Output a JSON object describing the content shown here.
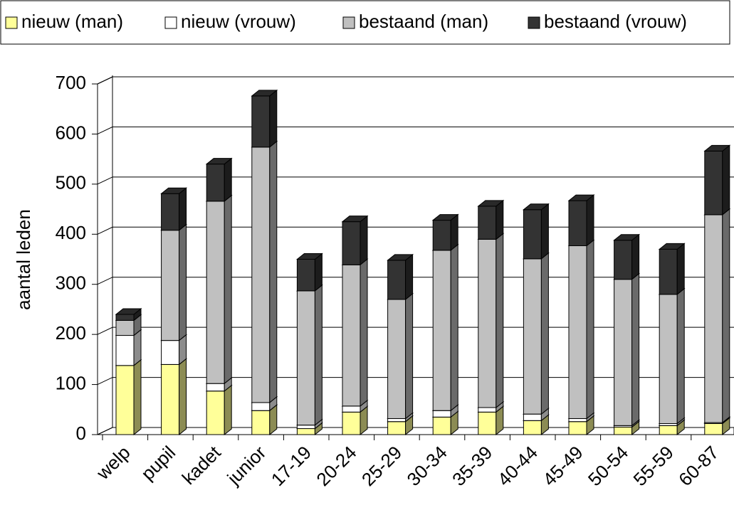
{
  "chart_data": {
    "type": "bar3d-stacked",
    "y_label": "aantal leden",
    "categories": [
      "welp",
      "pupil",
      "kadet",
      "junior",
      "17-19",
      "20-24",
      "25-29",
      "30-34",
      "35-39",
      "40-44",
      "45-49",
      "50-54",
      "55-59",
      "60-87"
    ],
    "series": [
      {
        "name": "nieuw (man)",
        "color": "#ffff99",
        "values": [
          138,
          140,
          87,
          48,
          12,
          45,
          26,
          35,
          45,
          28,
          26,
          15,
          18,
          22
        ]
      },
      {
        "name": "nieuw (vrouw)",
        "color": "#ffffff",
        "values": [
          60,
          48,
          15,
          16,
          7,
          12,
          6,
          13,
          9,
          13,
          6,
          3,
          4,
          2
        ]
      },
      {
        "name": "bestaand (man)",
        "color": "#c0c0c0",
        "values": [
          30,
          220,
          364,
          510,
          268,
          282,
          238,
          320,
          336,
          310,
          345,
          292,
          258,
          415
        ]
      },
      {
        "name": "bestaand (vrouw)",
        "color": "#333333",
        "values": [
          12,
          73,
          74,
          102,
          63,
          86,
          78,
          60,
          66,
          98,
          90,
          78,
          90,
          127
        ]
      }
    ],
    "ylim": [
      0,
      700
    ],
    "yticks": [
      0,
      100,
      200,
      300,
      400,
      500,
      600,
      700
    ],
    "grid": true,
    "legend": "top"
  }
}
